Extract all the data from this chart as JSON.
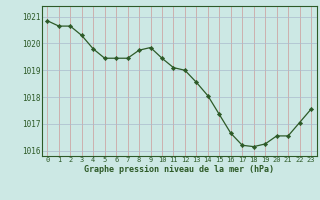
{
  "x": [
    0,
    1,
    2,
    3,
    4,
    5,
    6,
    7,
    8,
    9,
    10,
    11,
    12,
    13,
    14,
    15,
    16,
    17,
    18,
    19,
    20,
    21,
    22,
    23
  ],
  "y": [
    1020.85,
    1020.65,
    1020.65,
    1020.3,
    1019.8,
    1019.45,
    1019.45,
    1019.45,
    1019.75,
    1019.85,
    1019.45,
    1019.1,
    1019.0,
    1018.55,
    1018.05,
    1017.35,
    1016.65,
    1016.2,
    1016.15,
    1016.25,
    1016.55,
    1016.55,
    1017.05,
    1017.55
  ],
  "ylim": [
    1015.8,
    1021.4
  ],
  "yticks": [
    1016,
    1017,
    1018,
    1019,
    1020,
    1021
  ],
  "xlabel": "Graphe pression niveau de la mer (hPa)",
  "line_color": "#2d5a27",
  "marker_color": "#2d5a27",
  "bg_color": "#cce8e4",
  "grid_major_color": "#aaaacc",
  "grid_minor_color": "#ccdddd",
  "tick_color": "#2d5a27",
  "label_color": "#2d5a27"
}
